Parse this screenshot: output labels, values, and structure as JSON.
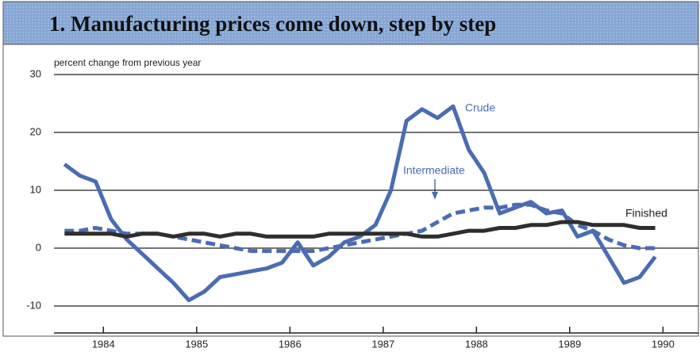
{
  "chart_data": {
    "type": "line",
    "title": "1. Manufacturing prices come down, step by step",
    "y_label": "percent change from previous year",
    "x": [
      1983.583,
      1983.75,
      1983.917,
      1984.083,
      1984.25,
      1984.417,
      1984.583,
      1984.75,
      1984.917,
      1985.083,
      1985.25,
      1985.417,
      1985.583,
      1985.75,
      1985.917,
      1986.083,
      1986.25,
      1986.417,
      1986.583,
      1986.75,
      1986.917,
      1987.083,
      1987.25,
      1987.417,
      1987.583,
      1987.75,
      1987.917,
      1988.083,
      1988.25,
      1988.417,
      1988.583,
      1988.75,
      1988.917,
      1989.083,
      1989.25,
      1989.417,
      1989.583,
      1989.75,
      1989.917
    ],
    "series": [
      {
        "name": "Crude",
        "color": "#4a6cb3",
        "linestyle": "solid",
        "values": [
          14.5,
          12.5,
          11.5,
          5,
          1.5,
          -1,
          -3.5,
          -6,
          -9,
          -7.5,
          -5,
          -4.5,
          -4,
          -3.5,
          -2.5,
          1,
          -3,
          -1.5,
          1,
          2,
          4,
          10,
          22,
          24,
          22.5,
          24.5,
          17,
          13,
          6,
          7,
          8,
          6,
          6.5,
          2,
          3,
          -1.5,
          -6,
          -5,
          -1.5
        ]
      },
      {
        "name": "Intermediate",
        "color": "#4a6cb3",
        "linestyle": "dashed",
        "values": [
          3,
          3,
          3.5,
          3,
          2.5,
          2.5,
          2.5,
          2,
          1.5,
          1,
          0.5,
          0,
          -0.5,
          -0.5,
          -0.5,
          -0.5,
          -0.5,
          0,
          0.5,
          1,
          1.5,
          2,
          2.5,
          3,
          4.5,
          6,
          6.5,
          7,
          7,
          7.5,
          7.5,
          6.5,
          6,
          4,
          3,
          1.5,
          0.5,
          0,
          0
        ]
      },
      {
        "name": "Finished",
        "color": "#2e2e2e",
        "linestyle": "solid",
        "values": [
          2.5,
          2.5,
          2.5,
          2.5,
          2,
          2.5,
          2.5,
          2,
          2.5,
          2.5,
          2,
          2.5,
          2.5,
          2,
          2,
          2,
          2,
          2.5,
          2.5,
          2.5,
          2.5,
          2.5,
          2.5,
          2,
          2,
          2.5,
          3,
          3,
          3.5,
          3.5,
          4,
          4,
          4.5,
          4.5,
          4,
          4,
          4,
          3.5,
          3.5
        ]
      }
    ],
    "xlim": [
      1983.47,
      1990.38
    ],
    "xticks": [
      1984,
      1985,
      1986,
      1987,
      1988,
      1989,
      1990
    ],
    "ylim": [
      -15,
      30
    ],
    "yticks": [
      -10,
      0,
      10,
      20,
      30
    ],
    "grid": true
  }
}
